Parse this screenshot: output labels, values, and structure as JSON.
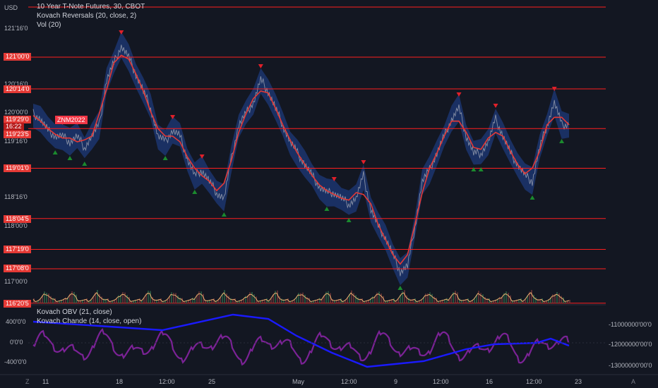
{
  "legend": {
    "main": "10 Year T-Note Futures, 30, CBOT",
    "study1": "Kovach Reversals (20, close, 2)",
    "study2": "Vol (20)",
    "osc1": "Kovach OBV (21, close)",
    "osc2": "Kovach Chande (14, close, open)"
  },
  "currency": "USD",
  "price_axis": {
    "ticks": [
      "121'16'0",
      "120'16'0",
      "120'00'0",
      "119'16'0",
      "118'16'0",
      "118'00'0",
      "117'00'0"
    ],
    "tags": [
      {
        "label": "121'00'0"
      },
      {
        "label": "120'14'0"
      },
      {
        "label": "119'29'0"
      },
      {
        "label": "16:22"
      },
      {
        "label": "119'23'5"
      },
      {
        "label": "119'01'0"
      },
      {
        "label": "118'04'5"
      },
      {
        "label": "117'19'0"
      },
      {
        "label": "117'08'0"
      },
      {
        "label": "116'20'5"
      }
    ]
  },
  "symbol_tag": "ZNM2022",
  "lower_left_axis": [
    "400'0'0",
    "0'0'0",
    "-400'0'0"
  ],
  "lower_right_axis": [
    "-11000000'00'0",
    "-12000000'00'0",
    "-13000000'00'0"
  ],
  "time_axis": [
    "11",
    "18",
    "12:00",
    "25",
    "May",
    "12:00",
    "9",
    "12:00",
    "16",
    "12:00",
    "23"
  ],
  "corner": {
    "left": "Z",
    "right": "A"
  },
  "colors": {
    "background": "#131722",
    "level_line": "#ff1f1f",
    "band": "#1e3a7a",
    "price": "#9aa0b0",
    "ma": "#e53935",
    "obv": "#1a1aff",
    "chande": "#8e24aa",
    "up_marker": "#1b8a2e",
    "down_marker": "#e0202a"
  },
  "chart_data": {
    "type": "line",
    "level_lines": [
      121.0,
      120.4375,
      119.7344,
      119.0313,
      118.1406,
      117.5938,
      117.25,
      116.6406
    ],
    "series": [
      {
        "values": [
          120.0,
          119.9,
          119.7,
          119.6,
          119.6,
          119.5,
          119.6,
          119.4,
          119.6,
          119.8,
          120.6,
          120.9,
          121.2,
          121.0,
          120.7,
          120.4,
          120.1,
          119.6,
          119.5,
          119.7,
          119.6,
          119.2,
          118.9,
          119.0,
          118.8,
          118.6,
          118.5,
          119.2,
          119.8,
          120.0,
          120.2,
          120.6,
          120.4,
          120.1,
          119.8,
          119.5,
          119.3,
          119.1,
          118.9,
          118.7,
          118.6,
          118.6,
          118.5,
          118.4,
          118.5,
          118.9,
          118.3,
          118.0,
          117.8,
          117.5,
          117.2,
          117.3,
          118.0,
          118.8,
          119.0,
          119.3,
          119.6,
          119.9,
          120.1,
          119.6,
          119.3,
          119.3,
          119.5,
          119.9,
          119.6,
          119.3,
          119.1,
          118.9,
          118.8,
          119.4,
          119.8,
          120.2,
          119.8,
          119.8
        ]
      }
    ]
  }
}
